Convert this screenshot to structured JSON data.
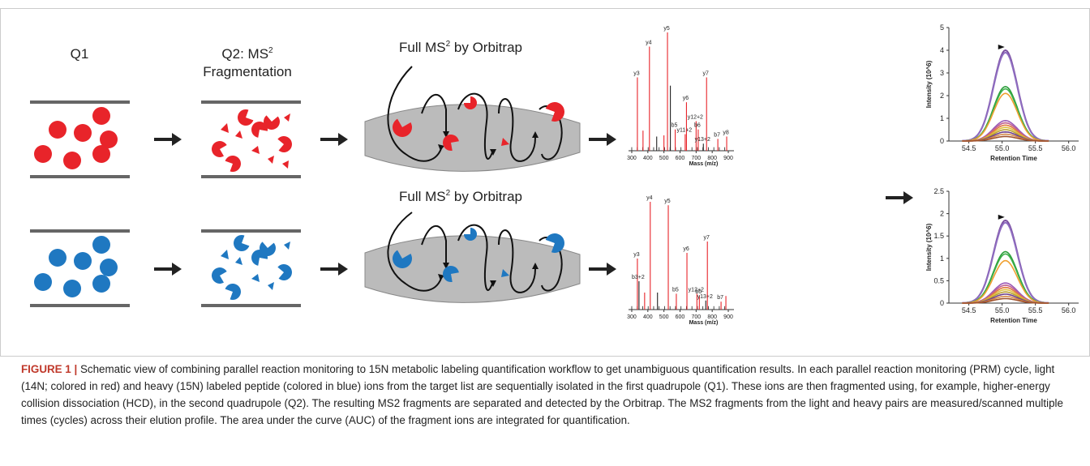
{
  "stage_labels": {
    "q1": "Q1",
    "q2_line1": "Q2: MS",
    "q2_sup": "2",
    "q2_line2": "Fragmentation",
    "orbitrap_main": "Full MS",
    "orbitrap_sup": "2",
    "orbitrap_suffix": " by Orbitrap"
  },
  "colors": {
    "light": "#e8242a",
    "heavy": "#1f78c1",
    "trap": "#bbbbbb",
    "peak_red": "#e8242a",
    "peak_black": "#222222"
  },
  "spectra": {
    "x_axis_label": "Mass (m/z)",
    "x_ticks": [
      "300",
      "400",
      "500",
      "600",
      "700",
      "800",
      "900"
    ],
    "top_peaks": [
      {
        "label": "y3",
        "mz": 335,
        "h": 0.62,
        "c": "red"
      },
      {
        "label": "",
        "mz": 370,
        "h": 0.17,
        "c": "red"
      },
      {
        "label": "y4",
        "mz": 410,
        "h": 0.88,
        "c": "red"
      },
      {
        "label": "",
        "mz": 455,
        "h": 0.12,
        "c": "black"
      },
      {
        "label": "",
        "mz": 500,
        "h": 0.13,
        "c": "red"
      },
      {
        "label": "y5",
        "mz": 522,
        "h": 1.0,
        "c": "red"
      },
      {
        "label": "",
        "mz": 540,
        "h": 0.55,
        "c": "black"
      },
      {
        "label": "b5",
        "mz": 570,
        "h": 0.18,
        "c": "red"
      },
      {
        "label": "y11+2",
        "mz": 632,
        "h": 0.14,
        "c": "red"
      },
      {
        "label": "y6",
        "mz": 640,
        "h": 0.41,
        "c": "red"
      },
      {
        "label": "y12+2",
        "mz": 700,
        "h": 0.25,
        "c": "red"
      },
      {
        "label": "b6",
        "mz": 713,
        "h": 0.18,
        "c": "red"
      },
      {
        "label": "y13+2",
        "mz": 745,
        "h": 0.06,
        "c": "black"
      },
      {
        "label": "y7",
        "mz": 765,
        "h": 0.62,
        "c": "red"
      },
      {
        "label": "b7",
        "mz": 835,
        "h": 0.1,
        "c": "red"
      },
      {
        "label": "y8",
        "mz": 890,
        "h": 0.12,
        "c": "red"
      }
    ],
    "bottom_peaks": [
      {
        "label": "y3",
        "mz": 335,
        "h": 0.45,
        "c": "red"
      },
      {
        "label": "b3+2",
        "mz": 345,
        "h": 0.25,
        "c": "black"
      },
      {
        "label": "",
        "mz": 380,
        "h": 0.15,
        "c": "red"
      },
      {
        "label": "y4",
        "mz": 415,
        "h": 0.95,
        "c": "red"
      },
      {
        "label": "",
        "mz": 460,
        "h": 0.15,
        "c": "black"
      },
      {
        "label": "y5",
        "mz": 527,
        "h": 0.92,
        "c": "red"
      },
      {
        "label": "b5",
        "mz": 577,
        "h": 0.14,
        "c": "red"
      },
      {
        "label": "y6",
        "mz": 643,
        "h": 0.5,
        "c": "red"
      },
      {
        "label": "y12+2",
        "mz": 705,
        "h": 0.14,
        "c": "red"
      },
      {
        "label": "b6",
        "mz": 720,
        "h": 0.12,
        "c": "red"
      },
      {
        "label": "y13+2",
        "mz": 760,
        "h": 0.08,
        "c": "black"
      },
      {
        "label": "y7",
        "mz": 770,
        "h": 0.6,
        "c": "red"
      },
      {
        "label": "b7",
        "mz": 855,
        "h": 0.07,
        "c": "red"
      },
      {
        "label": "",
        "mz": 885,
        "h": 0.12,
        "c": "red"
      }
    ]
  },
  "xic": {
    "y_axis_label": "Intensity (10^6)",
    "x_axis_label": "Retention Time",
    "x_ticks": [
      "54.5",
      "55.0",
      "55.5",
      "56.0"
    ],
    "top_y_ticks": [
      "0",
      "1",
      "2",
      "3",
      "4",
      "5"
    ],
    "bottom_y_ticks": [
      "0",
      "0.5",
      "1",
      "1.5",
      "2",
      "2.5"
    ],
    "top_peaks": [
      4.0,
      3.9,
      2.4,
      2.3,
      2.1,
      0.9,
      0.8,
      0.7,
      0.6,
      0.5,
      0.4,
      0.3,
      0.2
    ],
    "bottom_peaks": [
      1.85,
      1.8,
      1.15,
      1.1,
      0.95,
      0.45,
      0.4,
      0.35,
      0.3,
      0.25,
      0.2,
      0.15,
      0.1
    ],
    "line_colors": [
      "#7b4fa0",
      "#8e6cc0",
      "#2a9d3a",
      "#3caf4a",
      "#f0a030",
      "#9b59b6",
      "#c06090",
      "#e07840",
      "#e0c040",
      "#b8a030",
      "#6d3f8c",
      "#d4894a",
      "#a0522d"
    ]
  },
  "caption": {
    "label": "FIGURE 1 |",
    "text": "Schematic view of combining parallel reaction monitoring to 15N metabolic labeling quantification workflow to get unambiguous quantification results. In each parallel reaction monitoring (PRM) cycle, light (14N; colored in red) and heavy (15N) labeled peptide (colored in blue) ions from the target list are sequentially isolated in the first quadrupole (Q1). These ions are then fragmented using, for example, higher-energy collision dissociation (HCD), in the second quadrupole (Q2). The resulting MS2 fragments are separated and detected by the Orbitrap. The MS2 fragments from the light and heavy pairs are measured/scanned multiple times (cycles) across their elution profile. The area under the curve (AUC) of the fragment ions are integrated for quantification."
  }
}
